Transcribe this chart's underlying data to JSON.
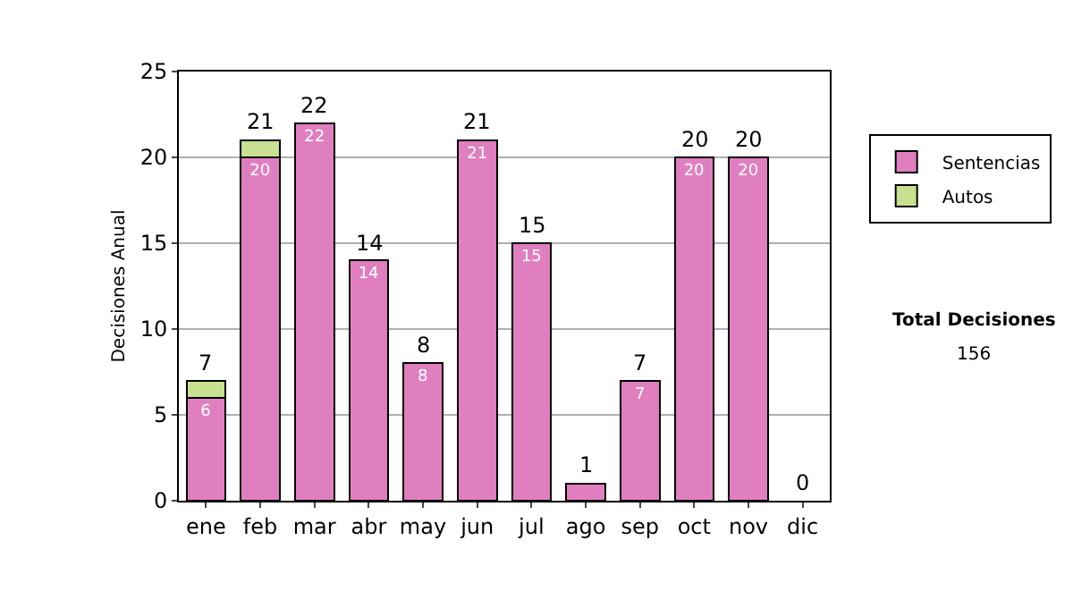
{
  "chart_data": {
    "type": "bar",
    "ylabel": "Decisiones Anual",
    "categories": [
      "ene",
      "feb",
      "mar",
      "abr",
      "may",
      "jun",
      "jul",
      "ago",
      "sep",
      "oct",
      "nov",
      "dic"
    ],
    "stacked": true,
    "series": [
      {
        "name": "Sentencias",
        "color": "#e07fc0",
        "values": [
          6,
          20,
          22,
          14,
          8,
          21,
          15,
          1,
          7,
          20,
          20,
          0
        ],
        "value_labels": [
          "6",
          "20",
          "22",
          "14",
          "8",
          "21",
          "15",
          null,
          "7",
          "20",
          "20",
          null
        ]
      },
      {
        "name": "Autos",
        "color": "#c8e08f",
        "values": [
          1,
          1,
          0,
          0,
          0,
          0,
          0,
          0,
          0,
          0,
          0,
          0
        ]
      }
    ],
    "totals": [
      "7",
      "21",
      "22",
      "14",
      "8",
      "21",
      "15",
      "1",
      "7",
      "20",
      "20",
      "0"
    ],
    "ylim": [
      0,
      25
    ],
    "yticks": [
      0,
      5,
      10,
      15,
      20,
      25
    ],
    "grid": "y",
    "legend": "right",
    "annotations": [
      "Total Decisiones",
      "156"
    ]
  }
}
